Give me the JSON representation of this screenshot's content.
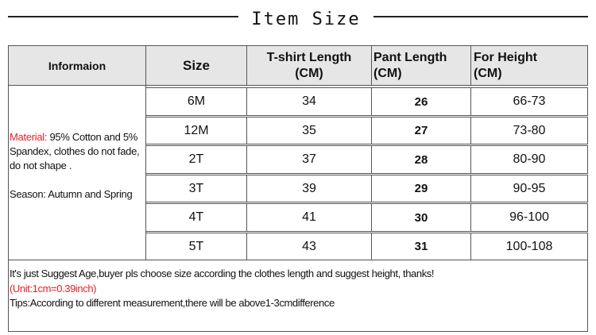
{
  "title": "Item Size",
  "headers": {
    "info": "Informaion",
    "size": "Size",
    "tshirt": "T-shirt Length\n(CM)",
    "pant": "Pant Length\n(CM)",
    "height": "For Height\n(CM)"
  },
  "info": {
    "material_label": "Material:",
    "material_text": "95% Cotton and 5% Spandex, clothes do not fade, do not shape .",
    "season": "Season: Autumn and Spring"
  },
  "rows": [
    {
      "size": "6M",
      "tshirt": "34",
      "pant": "26",
      "height": "66-73"
    },
    {
      "size": "12M",
      "tshirt": "35",
      "pant": "27",
      "height": "73-80"
    },
    {
      "size": "2T",
      "tshirt": "37",
      "pant": "28",
      "height": "80-90"
    },
    {
      "size": "3T",
      "tshirt": "39",
      "pant": "29",
      "height": "90-95"
    },
    {
      "size": "4T",
      "tshirt": "41",
      "pant": "30",
      "height": "96-100"
    },
    {
      "size": "5T",
      "tshirt": "43",
      "pant": "31",
      "height": "100-108"
    }
  ],
  "footer": {
    "line1": "It's just Suggest Age,buyer pls choose size according the clothes length and suggest height, thanks!",
    "line2": "(Unit:1cm=0.39inch)",
    "line3": "Tips:According to different measurement,there will be above1-3cmdifference"
  },
  "colors": {
    "accent_red": "#e8202a",
    "header_bg": "#e6e6e6"
  }
}
